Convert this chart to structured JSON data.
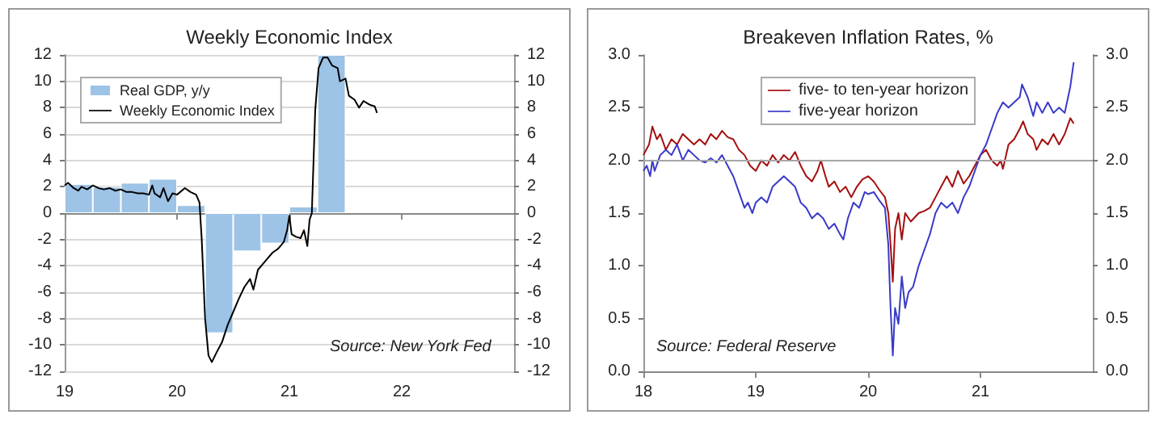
{
  "chart_data": [
    {
      "type": "bar",
      "title": "Weekly Economic Index",
      "xlim": [
        2019,
        2023
      ],
      "xticks": [
        {
          "value": 2019,
          "label": "19"
        },
        {
          "value": 2020,
          "label": "20"
        },
        {
          "value": 2021,
          "label": "21"
        },
        {
          "value": 2022,
          "label": "22"
        }
      ],
      "ylim": [
        -12,
        12
      ],
      "yticks": [
        -12,
        -10,
        -8,
        -6,
        -4,
        -2,
        0,
        2,
        4,
        6,
        8,
        10,
        12
      ],
      "y2lim": [
        -12,
        12
      ],
      "y2ticks": [
        -12,
        -10,
        -8,
        -6,
        -4,
        -2,
        0,
        2,
        4,
        6,
        8,
        10,
        12
      ],
      "grid": "y",
      "legend": "top left",
      "annotations": [
        "Source: New York Fed"
      ],
      "series": [
        {
          "name": "Real GDP, y/y",
          "color": "#9dc3e6",
          "x": [
            2019.125,
            2019.375,
            2019.625,
            2019.875,
            2020.125,
            2020.375,
            2020.625,
            2020.875,
            2021.125,
            2021.375
          ],
          "values": [
            2.2,
            2.0,
            2.3,
            2.6,
            0.6,
            -9.1,
            -2.9,
            -2.3,
            0.5,
            12.0
          ]
        },
        {
          "name": "Weekly Economic Index",
          "type": "line",
          "color": "#000000",
          "x": [
            2019.0,
            2019.03,
            2019.08,
            2019.12,
            2019.15,
            2019.2,
            2019.25,
            2019.3,
            2019.35,
            2019.4,
            2019.45,
            2019.5,
            2019.55,
            2019.6,
            2019.65,
            2019.7,
            2019.75,
            2019.78,
            2019.8,
            2019.85,
            2019.88,
            2019.92,
            2019.96,
            2020.0,
            2020.07,
            2020.12,
            2020.17,
            2020.2,
            2020.22,
            2020.25,
            2020.28,
            2020.31,
            2020.35,
            2020.4,
            2020.45,
            2020.5,
            2020.55,
            2020.6,
            2020.65,
            2020.68,
            2020.72,
            2020.8,
            2020.85,
            2020.9,
            2020.95,
            2020.98,
            2021.0,
            2021.02,
            2021.06,
            2021.1,
            2021.13,
            2021.16,
            2021.18,
            2021.2,
            2021.23,
            2021.26,
            2021.3,
            2021.34,
            2021.38,
            2021.43,
            2021.45,
            2021.5,
            2021.53,
            2021.58,
            2021.62,
            2021.66,
            2021.72,
            2021.76,
            2021.78
          ],
          "values": [
            2.1,
            2.3,
            1.9,
            1.7,
            2.0,
            1.8,
            2.1,
            1.9,
            1.8,
            1.9,
            1.7,
            1.8,
            1.6,
            1.6,
            1.5,
            1.5,
            1.4,
            2.1,
            1.5,
            1.2,
            1.9,
            0.9,
            1.5,
            1.4,
            1.9,
            1.6,
            1.4,
            0.8,
            -2.0,
            -8.0,
            -10.8,
            -11.3,
            -10.6,
            -9.8,
            -8.5,
            -7.5,
            -6.5,
            -5.6,
            -5.0,
            -5.8,
            -4.3,
            -3.5,
            -3.0,
            -2.7,
            -2.2,
            -1.3,
            -0.2,
            -1.6,
            -1.8,
            -1.9,
            -1.3,
            -2.5,
            -0.5,
            0.0,
            7.8,
            11.0,
            11.8,
            11.8,
            11.2,
            11.0,
            10.0,
            10.2,
            8.9,
            8.6,
            8.0,
            8.5,
            8.2,
            8.1,
            7.6
          ]
        }
      ]
    },
    {
      "type": "line",
      "title": "Breakeven Inflation Rates, %",
      "xlim": [
        2018,
        2022
      ],
      "xticks": [
        {
          "value": 2018,
          "label": "18"
        },
        {
          "value": 2019,
          "label": "19"
        },
        {
          "value": 2020,
          "label": "20"
        },
        {
          "value": 2021,
          "label": "21"
        }
      ],
      "ylim": [
        0,
        3
      ],
      "yticks": [
        {
          "value": 0,
          "label": "0.0"
        },
        {
          "value": 0.5,
          "label": "0.5"
        },
        {
          "value": 1,
          "label": "1.0"
        },
        {
          "value": 1.5,
          "label": "1.5"
        },
        {
          "value": 2,
          "label": "2.0"
        },
        {
          "value": 2.5,
          "label": "2.5"
        },
        {
          "value": 3,
          "label": "3.0"
        }
      ],
      "y2lim": [
        0,
        3
      ],
      "y2ticks": [
        {
          "value": 0,
          "label": "0.0"
        },
        {
          "value": 0.5,
          "label": "0.5"
        },
        {
          "value": 1,
          "label": "1.0"
        },
        {
          "value": 1.5,
          "label": "1.5"
        },
        {
          "value": 2,
          "label": "2.0"
        },
        {
          "value": 2.5,
          "label": "2.5"
        },
        {
          "value": 3,
          "label": "3.0"
        }
      ],
      "legend": "top",
      "ref_lines": [
        {
          "axis": "y",
          "value": 2.0,
          "color": "#a6a6a6"
        }
      ],
      "annotations": [
        "Source: Federal Reserve"
      ],
      "series": [
        {
          "name": "five- to ten-year horizon",
          "color": "#a50f0f",
          "x": [
            2018.0,
            2018.05,
            2018.08,
            2018.12,
            2018.15,
            2018.2,
            2018.25,
            2018.3,
            2018.35,
            2018.4,
            2018.45,
            2018.5,
            2018.55,
            2018.6,
            2018.65,
            2018.7,
            2018.75,
            2018.8,
            2018.85,
            2018.9,
            2018.95,
            2019.0,
            2019.05,
            2019.1,
            2019.15,
            2019.2,
            2019.25,
            2019.3,
            2019.35,
            2019.4,
            2019.45,
            2019.5,
            2019.55,
            2019.58,
            2019.62,
            2019.65,
            2019.7,
            2019.75,
            2019.8,
            2019.85,
            2019.9,
            2019.95,
            2020.0,
            2020.05,
            2020.1,
            2020.15,
            2020.18,
            2020.2,
            2020.22,
            2020.24,
            2020.27,
            2020.3,
            2020.33,
            2020.38,
            2020.45,
            2020.5,
            2020.55,
            2020.6,
            2020.65,
            2020.7,
            2020.75,
            2020.8,
            2020.85,
            2020.9,
            2020.95,
            2021.0,
            2021.05,
            2021.1,
            2021.15,
            2021.18,
            2021.2,
            2021.25,
            2021.3,
            2021.35,
            2021.38,
            2021.42,
            2021.47,
            2021.5,
            2021.55,
            2021.6,
            2021.65,
            2021.7,
            2021.75,
            2021.8,
            2021.83
          ],
          "values": [
            2.05,
            2.15,
            2.32,
            2.2,
            2.25,
            2.1,
            2.2,
            2.15,
            2.25,
            2.2,
            2.15,
            2.2,
            2.15,
            2.25,
            2.2,
            2.28,
            2.22,
            2.2,
            2.1,
            2.05,
            1.95,
            1.9,
            2.0,
            1.95,
            2.05,
            1.98,
            2.05,
            2.0,
            2.08,
            1.95,
            1.85,
            1.8,
            1.9,
            2.0,
            1.85,
            1.75,
            1.8,
            1.7,
            1.75,
            1.65,
            1.75,
            1.82,
            1.85,
            1.8,
            1.72,
            1.65,
            1.5,
            1.2,
            0.85,
            1.35,
            1.5,
            1.25,
            1.5,
            1.42,
            1.5,
            1.52,
            1.55,
            1.65,
            1.75,
            1.85,
            1.75,
            1.9,
            1.78,
            1.85,
            1.95,
            2.05,
            2.1,
            2.0,
            1.95,
            2.0,
            1.92,
            2.15,
            2.2,
            2.3,
            2.37,
            2.25,
            2.2,
            2.1,
            2.2,
            2.15,
            2.25,
            2.15,
            2.25,
            2.4,
            2.35
          ]
        },
        {
          "name": "five-year horizon",
          "color": "#3a3ac8",
          "x": [
            2018.0,
            2018.03,
            2018.06,
            2018.08,
            2018.1,
            2018.15,
            2018.2,
            2018.25,
            2018.3,
            2018.35,
            2018.4,
            2018.45,
            2018.5,
            2018.55,
            2018.6,
            2018.65,
            2018.7,
            2018.75,
            2018.8,
            2018.85,
            2018.9,
            2018.93,
            2018.97,
            2019.0,
            2019.05,
            2019.1,
            2019.15,
            2019.2,
            2019.25,
            2019.3,
            2019.35,
            2019.4,
            2019.45,
            2019.5,
            2019.55,
            2019.6,
            2019.65,
            2019.7,
            2019.75,
            2019.78,
            2019.82,
            2019.87,
            2019.92,
            2019.97,
            2020.0,
            2020.05,
            2020.1,
            2020.15,
            2020.18,
            2020.2,
            2020.22,
            2020.24,
            2020.27,
            2020.3,
            2020.33,
            2020.36,
            2020.4,
            2020.45,
            2020.5,
            2020.55,
            2020.6,
            2020.65,
            2020.7,
            2020.75,
            2020.8,
            2020.85,
            2020.9,
            2020.95,
            2021.0,
            2021.05,
            2021.1,
            2021.15,
            2021.2,
            2021.25,
            2021.3,
            2021.35,
            2021.37,
            2021.42,
            2021.47,
            2021.5,
            2021.55,
            2021.6,
            2021.65,
            2021.7,
            2021.75,
            2021.8,
            2021.83
          ],
          "values": [
            1.9,
            1.95,
            1.85,
            2.0,
            1.9,
            2.05,
            2.1,
            2.05,
            2.15,
            2.0,
            2.1,
            2.05,
            2.0,
            1.98,
            2.02,
            1.98,
            2.05,
            1.95,
            1.85,
            1.7,
            1.55,
            1.6,
            1.5,
            1.6,
            1.65,
            1.6,
            1.75,
            1.8,
            1.85,
            1.8,
            1.75,
            1.6,
            1.55,
            1.45,
            1.5,
            1.45,
            1.35,
            1.4,
            1.3,
            1.25,
            1.45,
            1.6,
            1.55,
            1.7,
            1.68,
            1.7,
            1.62,
            1.55,
            1.2,
            0.6,
            0.15,
            0.6,
            0.45,
            0.9,
            0.6,
            0.75,
            0.8,
            1.0,
            1.15,
            1.3,
            1.5,
            1.6,
            1.55,
            1.6,
            1.5,
            1.65,
            1.75,
            1.9,
            2.05,
            2.15,
            2.3,
            2.45,
            2.55,
            2.5,
            2.55,
            2.6,
            2.72,
            2.6,
            2.42,
            2.55,
            2.45,
            2.55,
            2.45,
            2.5,
            2.45,
            2.7,
            2.93
          ]
        }
      ]
    }
  ]
}
